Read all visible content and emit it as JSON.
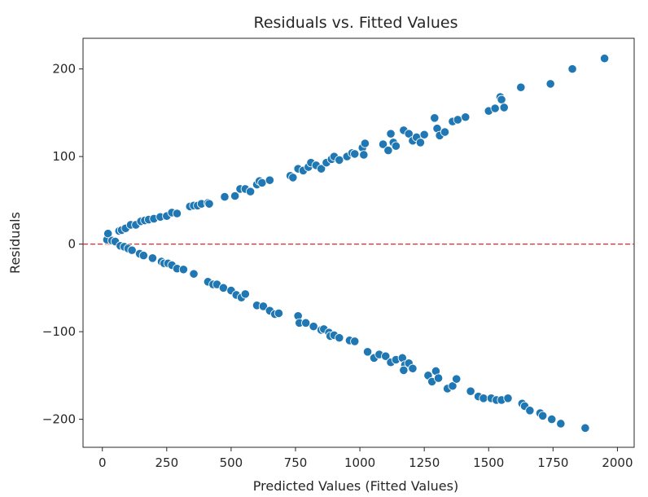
{
  "chart_data": {
    "type": "scatter",
    "title": "Residuals vs. Fitted Values",
    "xlabel": "Predicted Values (Fitted Values)",
    "ylabel": "Residuals",
    "xlim": [
      -75,
      2065
    ],
    "ylim": [
      -232,
      235
    ],
    "x_ticks": [
      0,
      250,
      500,
      750,
      1000,
      1250,
      1500,
      1750,
      2000
    ],
    "y_ticks": [
      -200,
      -100,
      0,
      100,
      200
    ],
    "x_tick_labels": [
      "0",
      "250",
      "500",
      "750",
      "1000",
      "1250",
      "1500",
      "1750",
      "2000"
    ],
    "y_tick_labels": [
      "−200",
      "−100",
      "0",
      "100",
      "200"
    ],
    "grid": false,
    "reference_line": {
      "y": 0,
      "color": "#e8262b",
      "style": "dashed"
    },
    "marker_color": "#1f77b4",
    "points": [
      [
        18,
        5
      ],
      [
        22,
        12
      ],
      [
        38,
        4
      ],
      [
        50,
        3
      ],
      [
        65,
        15
      ],
      [
        75,
        16
      ],
      [
        90,
        18
      ],
      [
        110,
        22
      ],
      [
        130,
        22
      ],
      [
        150,
        26
      ],
      [
        165,
        27
      ],
      [
        180,
        28
      ],
      [
        200,
        29
      ],
      [
        225,
        31
      ],
      [
        250,
        32
      ],
      [
        270,
        36
      ],
      [
        290,
        35
      ],
      [
        340,
        43
      ],
      [
        355,
        44
      ],
      [
        370,
        44
      ],
      [
        385,
        46
      ],
      [
        410,
        47
      ],
      [
        415,
        46
      ],
      [
        475,
        54
      ],
      [
        515,
        55
      ],
      [
        535,
        63
      ],
      [
        555,
        63
      ],
      [
        575,
        60
      ],
      [
        600,
        68
      ],
      [
        610,
        72
      ],
      [
        620,
        70
      ],
      [
        650,
        73
      ],
      [
        730,
        78
      ],
      [
        740,
        76
      ],
      [
        760,
        86
      ],
      [
        780,
        84
      ],
      [
        800,
        88
      ],
      [
        810,
        93
      ],
      [
        830,
        90
      ],
      [
        850,
        86
      ],
      [
        870,
        93
      ],
      [
        890,
        97
      ],
      [
        900,
        100
      ],
      [
        920,
        96
      ],
      [
        950,
        100
      ],
      [
        970,
        104
      ],
      [
        980,
        103
      ],
      [
        1010,
        110
      ],
      [
        1015,
        102
      ],
      [
        1020,
        115
      ],
      [
        1090,
        114
      ],
      [
        1110,
        107
      ],
      [
        1120,
        126
      ],
      [
        1130,
        116
      ],
      [
        1140,
        112
      ],
      [
        1170,
        130
      ],
      [
        1190,
        126
      ],
      [
        1205,
        118
      ],
      [
        1220,
        122
      ],
      [
        1235,
        116
      ],
      [
        1250,
        125
      ],
      [
        1290,
        144
      ],
      [
        1300,
        132
      ],
      [
        1310,
        124
      ],
      [
        1330,
        128
      ],
      [
        1360,
        140
      ],
      [
        1380,
        142
      ],
      [
        1410,
        145
      ],
      [
        1500,
        152
      ],
      [
        1525,
        155
      ],
      [
        1545,
        168
      ],
      [
        1550,
        165
      ],
      [
        1560,
        156
      ],
      [
        1625,
        179
      ],
      [
        1740,
        183
      ],
      [
        1825,
        200
      ],
      [
        1950,
        212
      ],
      [
        70,
        -2
      ],
      [
        85,
        -3
      ],
      [
        100,
        -5
      ],
      [
        115,
        -7
      ],
      [
        145,
        -11
      ],
      [
        160,
        -13
      ],
      [
        195,
        -16
      ],
      [
        230,
        -20
      ],
      [
        240,
        -22
      ],
      [
        255,
        -22
      ],
      [
        270,
        -24
      ],
      [
        290,
        -28
      ],
      [
        315,
        -29
      ],
      [
        355,
        -34
      ],
      [
        410,
        -43
      ],
      [
        430,
        -46
      ],
      [
        445,
        -46
      ],
      [
        470,
        -50
      ],
      [
        500,
        -53
      ],
      [
        520,
        -58
      ],
      [
        540,
        -61
      ],
      [
        555,
        -57
      ],
      [
        600,
        -70
      ],
      [
        625,
        -71
      ],
      [
        650,
        -76
      ],
      [
        670,
        -80
      ],
      [
        685,
        -79
      ],
      [
        760,
        -82
      ],
      [
        765,
        -90
      ],
      [
        790,
        -90
      ],
      [
        820,
        -94
      ],
      [
        850,
        -98
      ],
      [
        860,
        -97
      ],
      [
        880,
        -101
      ],
      [
        885,
        -105
      ],
      [
        900,
        -104
      ],
      [
        920,
        -107
      ],
      [
        960,
        -110
      ],
      [
        980,
        -111
      ],
      [
        1030,
        -123
      ],
      [
        1055,
        -130
      ],
      [
        1075,
        -126
      ],
      [
        1100,
        -128
      ],
      [
        1120,
        -135
      ],
      [
        1140,
        -132
      ],
      [
        1165,
        -130
      ],
      [
        1175,
        -138
      ],
      [
        1190,
        -136
      ],
      [
        1205,
        -142
      ],
      [
        1170,
        -144
      ],
      [
        1265,
        -150
      ],
      [
        1280,
        -157
      ],
      [
        1295,
        -145
      ],
      [
        1305,
        -153
      ],
      [
        1340,
        -165
      ],
      [
        1360,
        -162
      ],
      [
        1375,
        -154
      ],
      [
        1430,
        -168
      ],
      [
        1460,
        -174
      ],
      [
        1480,
        -176
      ],
      [
        1510,
        -176
      ],
      [
        1530,
        -178
      ],
      [
        1550,
        -178
      ],
      [
        1575,
        -176
      ],
      [
        1630,
        -182
      ],
      [
        1640,
        -185
      ],
      [
        1660,
        -190
      ],
      [
        1700,
        -193
      ],
      [
        1710,
        -196
      ],
      [
        1745,
        -200
      ],
      [
        1780,
        -205
      ],
      [
        1875,
        -210
      ]
    ]
  }
}
